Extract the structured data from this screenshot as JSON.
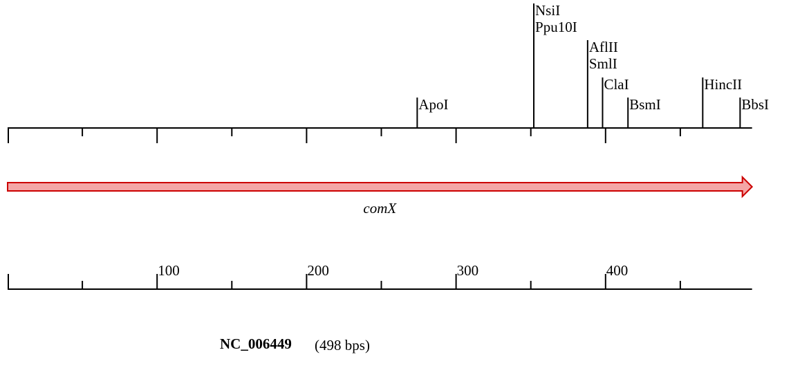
{
  "sequence": {
    "accession": "NC_006449",
    "length_label": "(498 bps)",
    "length_bp": 498
  },
  "gene": {
    "name": "comX",
    "start": 1,
    "end": 498,
    "strand": "forward",
    "fill_color": "#f4a6a6",
    "stroke_color": "#cc0000"
  },
  "restriction_sites": [
    {
      "enzyme": "ApoI",
      "position": 274
    },
    {
      "enzyme": "NsiI",
      "position": 352
    },
    {
      "enzyme": "Ppu10I",
      "position": 352
    },
    {
      "enzyme": "AflII",
      "position": 388
    },
    {
      "enzyme": "SmlI",
      "position": 388
    },
    {
      "enzyme": "ClaI",
      "position": 398
    },
    {
      "enzyme": "BsmI",
      "position": 415
    },
    {
      "enzyme": "HincII",
      "position": 465
    },
    {
      "enzyme": "BbsI",
      "position": 490
    }
  ],
  "scale": {
    "major_ticks": [
      100,
      200,
      300,
      400
    ],
    "minor_ticks": [
      50,
      150,
      250,
      350,
      450
    ]
  }
}
